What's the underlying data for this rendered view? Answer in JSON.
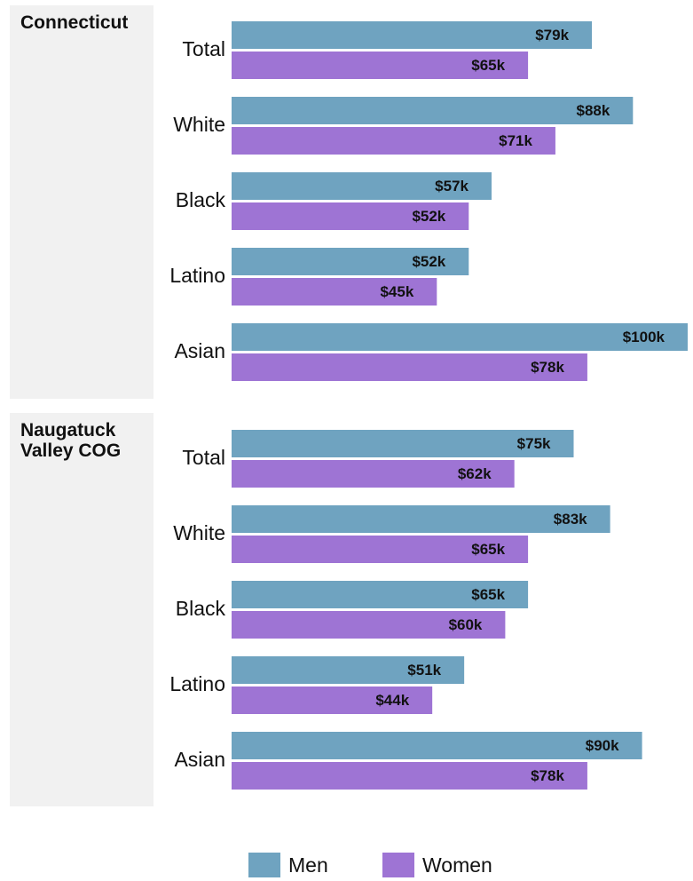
{
  "colors": {
    "men": "#6fa3c0",
    "women": "#9e74d4",
    "panel_bg": "#f1f1f1",
    "text": "#111111"
  },
  "chart_data": {
    "type": "bar",
    "orientation": "horizontal",
    "xlim": [
      0,
      100
    ],
    "value_unit": "$k",
    "legend": {
      "placement": "bottom",
      "entries": [
        "Men",
        "Women"
      ]
    },
    "categories": [
      "Total",
      "White",
      "Black",
      "Latino",
      "Asian"
    ],
    "panels": [
      {
        "title": "Connecticut",
        "series": [
          {
            "name": "Men",
            "values": [
              79,
              88,
              57,
              52,
              100
            ],
            "labels": [
              "$79k",
              "$88k",
              "$57k",
              "$52k",
              "$100k"
            ]
          },
          {
            "name": "Women",
            "values": [
              65,
              71,
              52,
              45,
              78
            ],
            "labels": [
              "$65k",
              "$71k",
              "$52k",
              "$45k",
              "$78k"
            ]
          }
        ]
      },
      {
        "title": "Naugatuck\nValley COG",
        "series": [
          {
            "name": "Men",
            "values": [
              75,
              83,
              65,
              51,
              90
            ],
            "labels": [
              "$75k",
              "$83k",
              "$65k",
              "$51k",
              "$90k"
            ]
          },
          {
            "name": "Women",
            "values": [
              62,
              65,
              60,
              44,
              78
            ],
            "labels": [
              "$62k",
              "$65k",
              "$60k",
              "$44k",
              "$78k"
            ]
          }
        ]
      }
    ]
  }
}
